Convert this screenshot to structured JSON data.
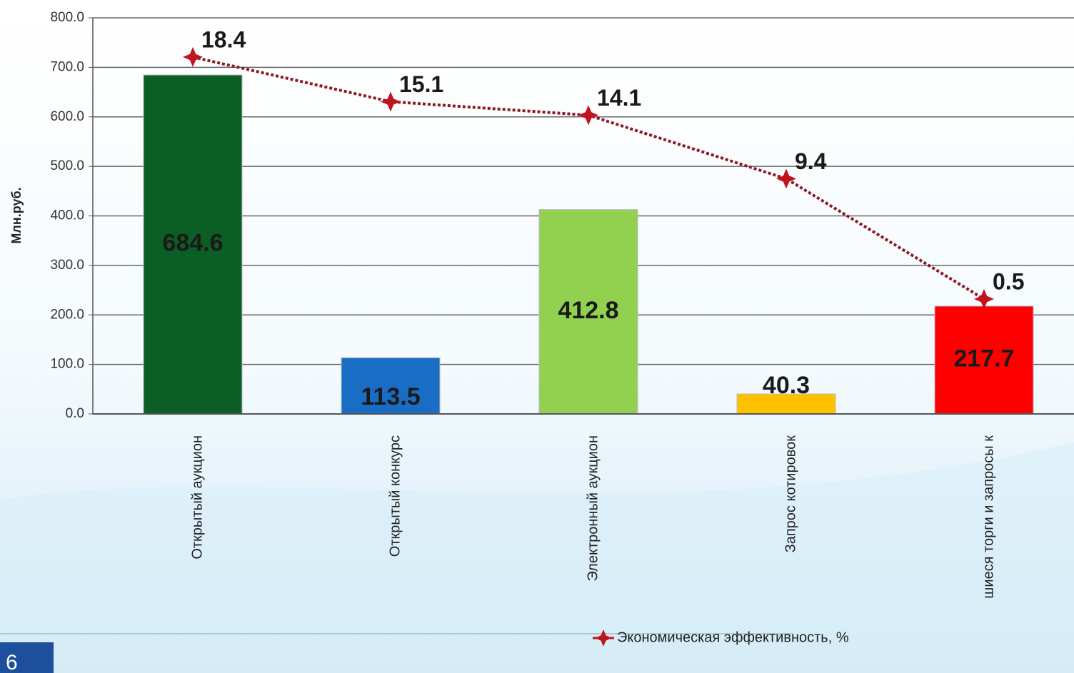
{
  "page_number": "6",
  "chart_data": {
    "type": "bar",
    "y_label": "Млн.руб.",
    "categories": [
      "Открытый аукцион",
      "Открытый конкурс",
      "Электронный аукцион",
      "Запрос котировок",
      "шиеся торги и запросы к"
    ],
    "values": [
      684.6,
      113.5,
      412.8,
      40.3,
      217.7
    ],
    "colors": [
      "#0b5e24",
      "#1a6dc4",
      "#92d050",
      "#ffc000",
      "#ff0000"
    ],
    "ylim": [
      0,
      800
    ],
    "yticks": [
      {
        "value": 0,
        "label": "0.0"
      },
      {
        "value": 100,
        "label": "100.0"
      },
      {
        "value": 200,
        "label": "200.0"
      },
      {
        "value": 300,
        "label": "300.0"
      },
      {
        "value": 400,
        "label": "400.0"
      },
      {
        "value": 500,
        "label": "500.0"
      },
      {
        "value": 600,
        "label": "600.0"
      },
      {
        "value": 700,
        "label": "700.0"
      },
      {
        "value": 800,
        "label": "800.0"
      }
    ],
    "grid": true,
    "y2lim": [
      -8,
      21.3
    ],
    "line": {
      "name": "Экономическая эффективность, %",
      "color": "#c0141e",
      "axis": "y2",
      "values": [
        18.4,
        15.1,
        14.1,
        9.4,
        0.5
      ]
    }
  }
}
